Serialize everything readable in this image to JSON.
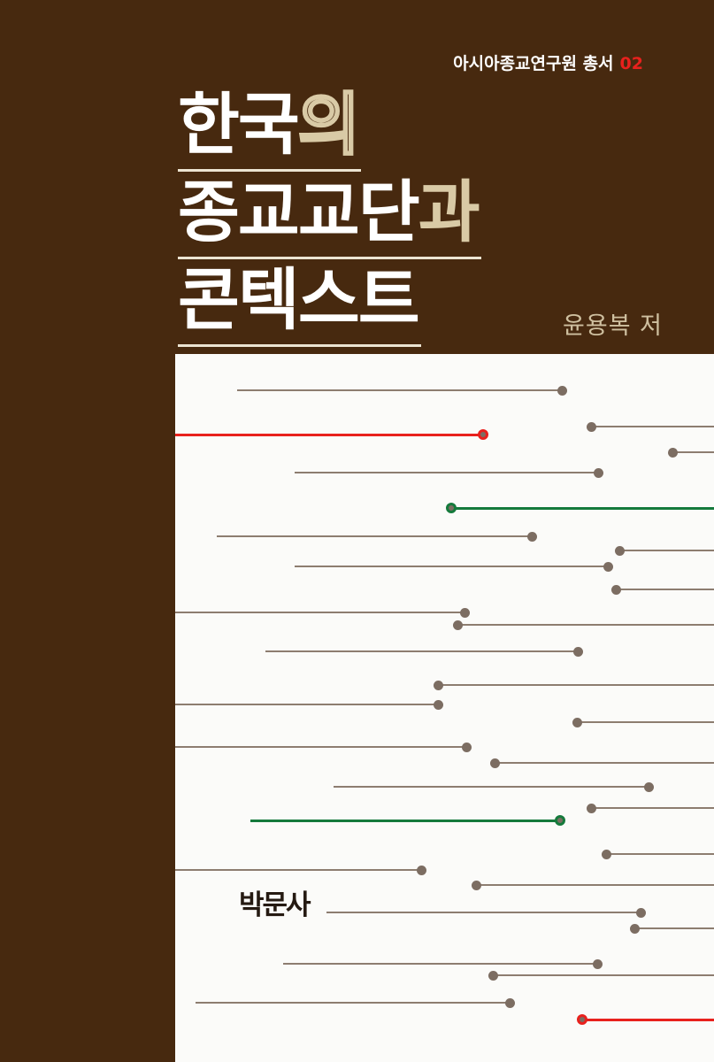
{
  "cover": {
    "series": {
      "label": "아시아종교연구원 총서",
      "number": "02"
    },
    "title": {
      "lines": [
        {
          "segments": [
            {
              "text": "한국",
              "style": "white"
            },
            {
              "text": "의",
              "style": "outline"
            }
          ]
        },
        {
          "segments": [
            {
              "text": "종교교단",
              "style": "white"
            },
            {
              "text": "과",
              "style": "tan"
            }
          ]
        },
        {
          "segments": [
            {
              "text": "콘텍스트",
              "style": "white"
            }
          ]
        }
      ]
    },
    "author": "윤용복 저",
    "publisher": "박문사",
    "colors": {
      "background": "#47290f",
      "panel": "#fbfbf9",
      "accent_red": "#e8211d",
      "accent_green": "#157a3c",
      "line_taupe": "#8d7d70",
      "dot_taupe": "#7c6d62",
      "text_tan": "#d9caa6",
      "text_white": "#ffffff",
      "logo_dark": "#251a12"
    },
    "decorative_lines": [
      {
        "y": 41,
        "x1": 70,
        "x2": 437,
        "color": "taupe",
        "dot": "right",
        "ring": false
      },
      {
        "y": 82,
        "x1": 470,
        "x2": 609,
        "color": "taupe",
        "dot": "left",
        "ring": false
      },
      {
        "y": 91,
        "x1": 0,
        "x2": 348,
        "color": "red",
        "dot": "right",
        "ring": true
      },
      {
        "y": 111,
        "x1": 562,
        "x2": 609,
        "color": "taupe",
        "dot": "left",
        "ring": false
      },
      {
        "y": 134,
        "x1": 135,
        "x2": 478,
        "color": "taupe",
        "dot": "right",
        "ring": false
      },
      {
        "y": 174,
        "x1": 312,
        "x2": 609,
        "color": "green",
        "dot": "left",
        "ring": true
      },
      {
        "y": 206,
        "x1": 47,
        "x2": 403,
        "color": "taupe",
        "dot": "right",
        "ring": false
      },
      {
        "y": 222,
        "x1": 502,
        "x2": 609,
        "color": "taupe",
        "dot": "left",
        "ring": false
      },
      {
        "y": 240,
        "x1": 135,
        "x2": 489,
        "color": "taupe",
        "dot": "right",
        "ring": false
      },
      {
        "y": 266,
        "x1": 498,
        "x2": 609,
        "color": "taupe",
        "dot": "left",
        "ring": false
      },
      {
        "y": 292,
        "x1": 0,
        "x2": 327,
        "color": "taupe",
        "dot": "right",
        "ring": false
      },
      {
        "y": 306,
        "x1": 319,
        "x2": 609,
        "color": "taupe",
        "dot": "left",
        "ring": false
      },
      {
        "y": 336,
        "x1": 102,
        "x2": 455,
        "color": "taupe",
        "dot": "right",
        "ring": false
      },
      {
        "y": 374,
        "x1": 297,
        "x2": 609,
        "color": "taupe",
        "dot": "left",
        "ring": false
      },
      {
        "y": 396,
        "x1": 0,
        "x2": 297,
        "color": "taupe",
        "dot": "right",
        "ring": false
      },
      {
        "y": 416,
        "x1": 454,
        "x2": 609,
        "color": "taupe",
        "dot": "left",
        "ring": false
      },
      {
        "y": 444,
        "x1": 0,
        "x2": 329,
        "color": "taupe",
        "dot": "right",
        "ring": false
      },
      {
        "y": 462,
        "x1": 361,
        "x2": 609,
        "color": "taupe",
        "dot": "left",
        "ring": false
      },
      {
        "y": 489,
        "x1": 179,
        "x2": 535,
        "color": "taupe",
        "dot": "right",
        "ring": false
      },
      {
        "y": 513,
        "x1": 470,
        "x2": 609,
        "color": "taupe",
        "dot": "left",
        "ring": false
      },
      {
        "y": 527,
        "x1": 85,
        "x2": 435,
        "color": "green",
        "dot": "right",
        "ring": true
      },
      {
        "y": 565,
        "x1": 487,
        "x2": 609,
        "color": "taupe",
        "dot": "left",
        "ring": false
      },
      {
        "y": 583,
        "x1": 0,
        "x2": 278,
        "color": "taupe",
        "dot": "right",
        "ring": false
      },
      {
        "y": 600,
        "x1": 340,
        "x2": 609,
        "color": "taupe",
        "dot": "left",
        "ring": false
      },
      {
        "y": 631,
        "x1": 171,
        "x2": 526,
        "color": "taupe",
        "dot": "right",
        "ring": false
      },
      {
        "y": 649,
        "x1": 519,
        "x2": 609,
        "color": "taupe",
        "dot": "left",
        "ring": false
      },
      {
        "y": 689,
        "x1": 122,
        "x2": 477,
        "color": "taupe",
        "dot": "right",
        "ring": false
      },
      {
        "y": 702,
        "x1": 359,
        "x2": 609,
        "color": "taupe",
        "dot": "left",
        "ring": false
      },
      {
        "y": 733,
        "x1": 23,
        "x2": 378,
        "color": "taupe",
        "dot": "right",
        "ring": false
      },
      {
        "y": 752,
        "x1": 460,
        "x2": 609,
        "color": "red",
        "dot": "left",
        "ring": true
      }
    ]
  }
}
